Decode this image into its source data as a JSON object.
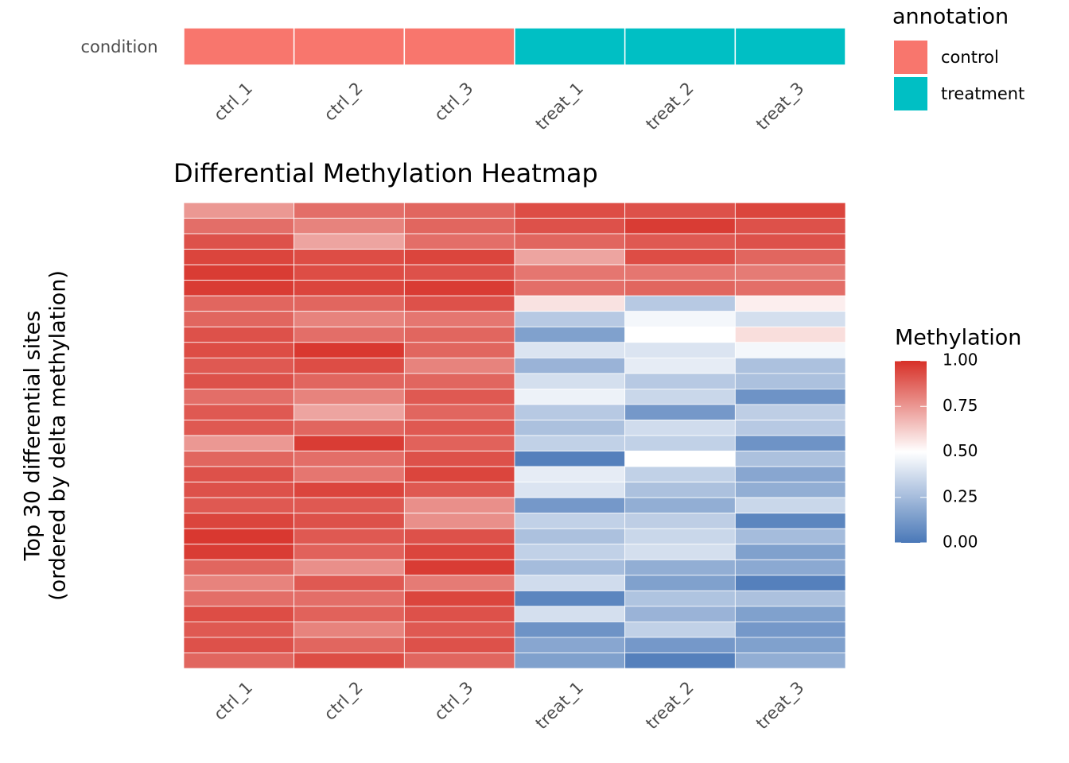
{
  "chart_data": {
    "type": "heatmap",
    "title": "Differential Methylation Heatmap",
    "ylabel": [
      "Top 30 differential sites",
      "(ordered by delta methylation)"
    ],
    "columns": [
      "ctrl_1",
      "ctrl_2",
      "ctrl_3",
      "treat_1",
      "treat_2",
      "treat_3"
    ],
    "values": [
      [
        0.75,
        0.85,
        0.87,
        0.93,
        0.92,
        0.95
      ],
      [
        0.85,
        0.8,
        0.87,
        0.92,
        0.97,
        0.92
      ],
      [
        0.92,
        0.72,
        0.85,
        0.87,
        0.9,
        0.92
      ],
      [
        0.95,
        0.93,
        0.95,
        0.72,
        0.93,
        0.87
      ],
      [
        0.97,
        0.93,
        0.92,
        0.83,
        0.83,
        0.82
      ],
      [
        0.97,
        0.95,
        0.97,
        0.85,
        0.87,
        0.85
      ],
      [
        0.87,
        0.87,
        0.92,
        0.57,
        0.3,
        0.54
      ],
      [
        0.87,
        0.8,
        0.83,
        0.3,
        0.47,
        0.38
      ],
      [
        0.92,
        0.85,
        0.87,
        0.15,
        0.5,
        0.58
      ],
      [
        0.93,
        0.98,
        0.87,
        0.4,
        0.4,
        0.47
      ],
      [
        0.9,
        0.93,
        0.8,
        0.22,
        0.43,
        0.27
      ],
      [
        0.92,
        0.87,
        0.87,
        0.38,
        0.3,
        0.27
      ],
      [
        0.85,
        0.8,
        0.9,
        0.45,
        0.35,
        0.1
      ],
      [
        0.9,
        0.72,
        0.87,
        0.3,
        0.12,
        0.32
      ],
      [
        0.9,
        0.87,
        0.9,
        0.27,
        0.37,
        0.3
      ],
      [
        0.75,
        0.97,
        0.88,
        0.33,
        0.33,
        0.1
      ],
      [
        0.87,
        0.85,
        0.92,
        0.03,
        0.5,
        0.27
      ],
      [
        0.92,
        0.83,
        0.95,
        0.43,
        0.33,
        0.17
      ],
      [
        0.92,
        0.95,
        0.9,
        0.4,
        0.27,
        0.2
      ],
      [
        0.9,
        0.9,
        0.77,
        0.12,
        0.2,
        0.35
      ],
      [
        0.95,
        0.92,
        0.77,
        0.33,
        0.32,
        0.05
      ],
      [
        0.98,
        0.9,
        0.92,
        0.27,
        0.35,
        0.25
      ],
      [
        0.97,
        0.88,
        0.95,
        0.33,
        0.38,
        0.15
      ],
      [
        0.87,
        0.77,
        0.97,
        0.25,
        0.2,
        0.18
      ],
      [
        0.8,
        0.9,
        0.82,
        0.37,
        0.15,
        0.03
      ],
      [
        0.85,
        0.85,
        0.95,
        0.05,
        0.28,
        0.27
      ],
      [
        0.93,
        0.88,
        0.92,
        0.38,
        0.22,
        0.15
      ],
      [
        0.9,
        0.8,
        0.9,
        0.1,
        0.33,
        0.12
      ],
      [
        0.92,
        0.87,
        0.92,
        0.17,
        0.12,
        0.15
      ],
      [
        0.87,
        0.93,
        0.87,
        0.15,
        0.03,
        0.2
      ]
    ],
    "colorscale": {
      "low": "#4a78b8",
      "mid": "#ffffff",
      "high": "#d73027"
    },
    "legend_title": "Methylation",
    "zlim": [
      0,
      1
    ],
    "zticks": [
      {
        "value": 0,
        "label": "0.00"
      },
      {
        "value": 0.25,
        "label": "0.25"
      },
      {
        "value": 0.5,
        "label": "0.50"
      },
      {
        "value": 0.75,
        "label": "0.75"
      },
      {
        "value": 1,
        "label": "1.00"
      }
    ],
    "annotation": {
      "title": "annotation",
      "label": "condition",
      "levels": [
        {
          "name": "control",
          "color": "#f8766d"
        },
        {
          "name": "treatment",
          "color": "#00bfc4"
        }
      ],
      "values": [
        "control",
        "control",
        "control",
        "treatment",
        "treatment",
        "treatment"
      ]
    }
  }
}
